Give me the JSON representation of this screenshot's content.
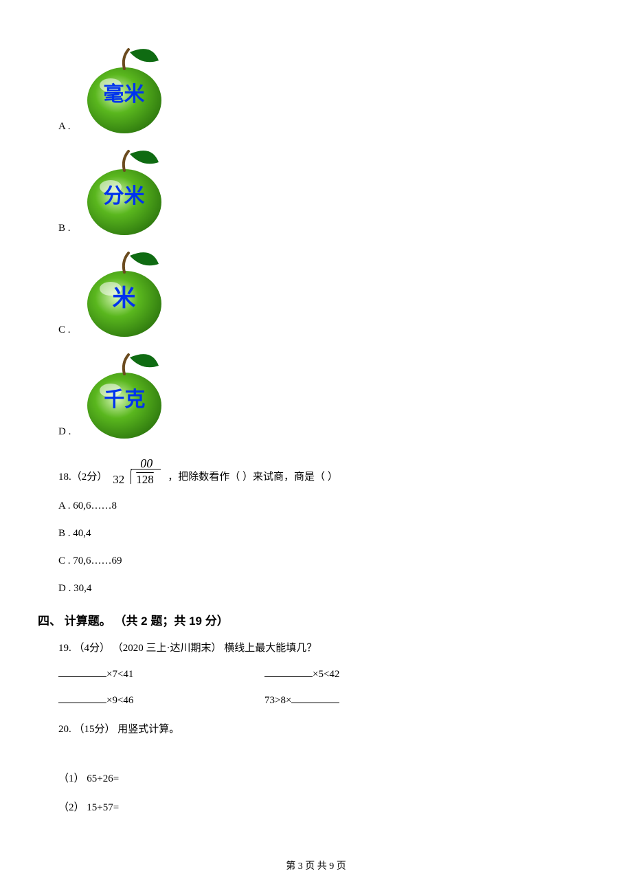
{
  "apples": {
    "fill": "#5ab71e",
    "highlight": "#d8f6b8",
    "leaf": "#0f6b12",
    "stem": "#6b4b1f",
    "shadow_gradient_start": "#2f7a0f",
    "shadow_gradient_end": "#5ab71e",
    "label_color": "#0033ee",
    "items": [
      {
        "letter": "A .",
        "label": "毫米",
        "fontsize": 30
      },
      {
        "letter": "B .",
        "label": "分米",
        "fontsize": 30
      },
      {
        "letter": "C .",
        "label": "米",
        "fontsize": 34
      },
      {
        "letter": "D .",
        "label": "千克",
        "fontsize": 30
      }
    ]
  },
  "q18": {
    "number": "18. ",
    "points": "（2分） ",
    "division": {
      "quotient": "00",
      "divisor": "32",
      "dividend": "128"
    },
    "suffix": "，把除数看作（    ）来试商，商是（    ）",
    "opts": [
      "A . 60,6……8",
      "B . 40,4",
      "C . 70,6……69",
      "D . 30,4"
    ]
  },
  "sectionFour": "四、 计算题。 （共 2 题；共 19 分）",
  "q19": {
    "header": "19. （4分） （2020 三上·达川期末） 横线上最大能填几？",
    "cells": [
      {
        "before": "",
        "after": "×7<41"
      },
      {
        "before": "",
        "after": "×5<42"
      },
      {
        "before": "",
        "after": "×9<46"
      },
      {
        "before": "73>8×",
        "after": ""
      }
    ]
  },
  "q20": {
    "header": "20. （15分）  用竖式计算。",
    "subs": [
      "（1） 65+26=",
      "（2） 15+57="
    ]
  },
  "footer": "第 3 页 共 9 页"
}
